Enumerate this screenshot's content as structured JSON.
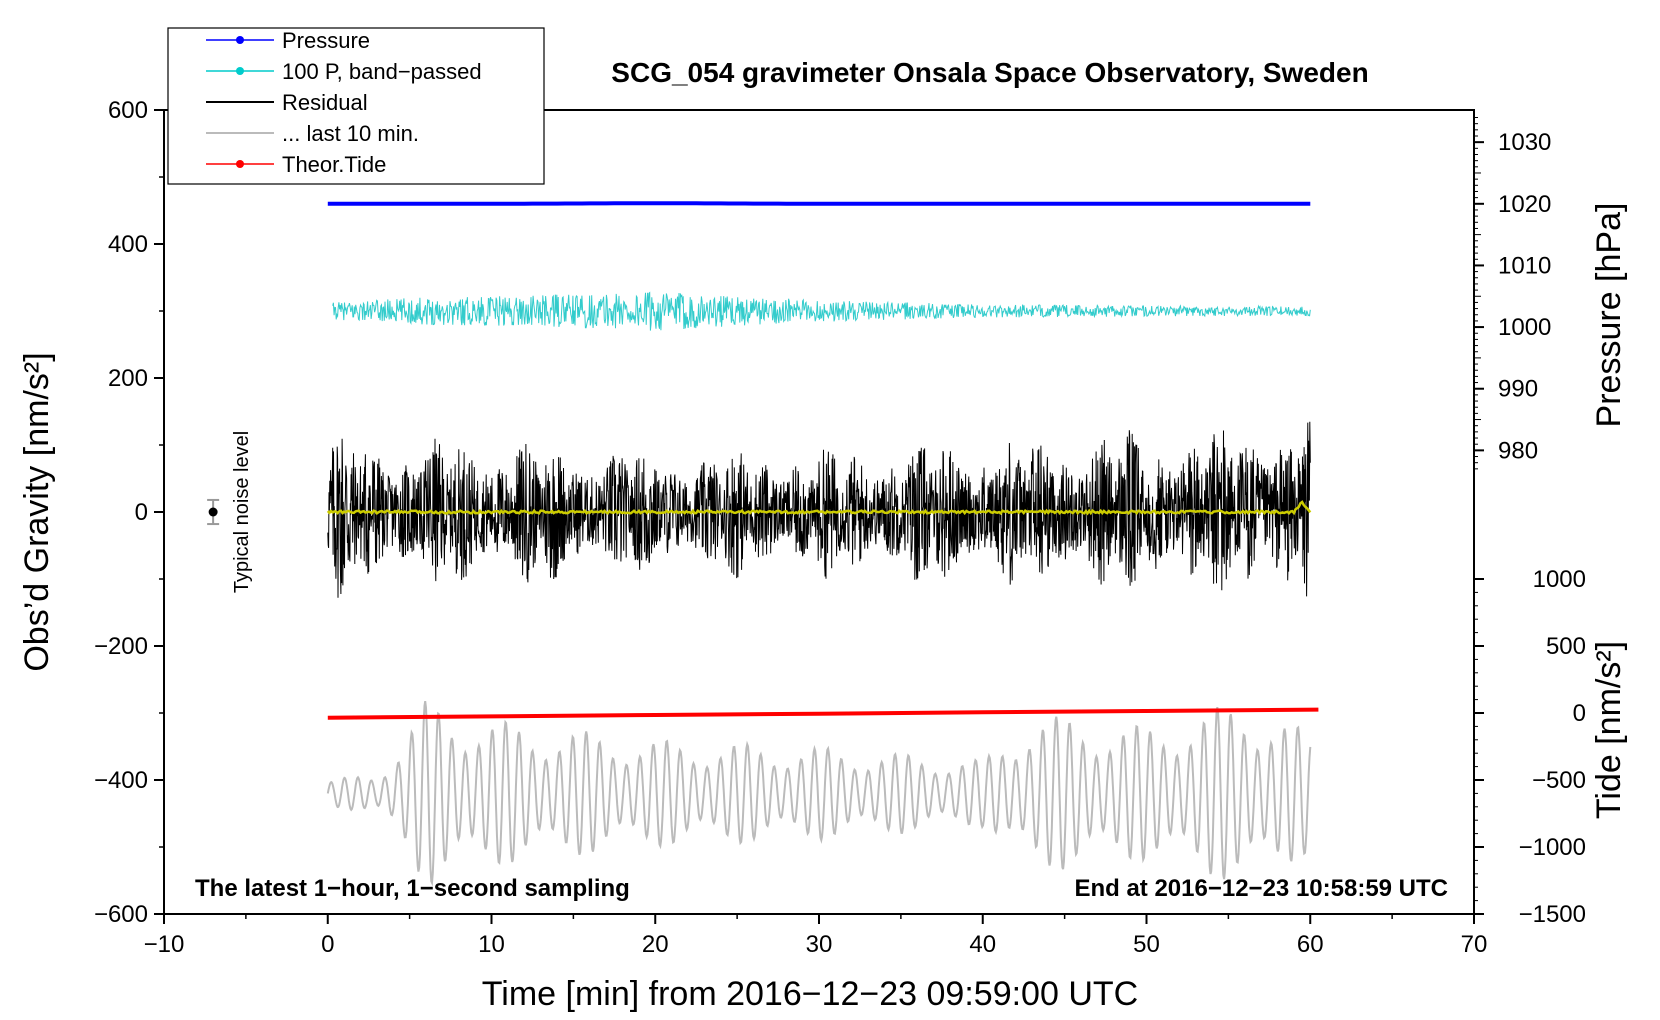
{
  "chart_data": {
    "type": "line",
    "title": "SCG_054 gravimeter Onsala Space Observatory, Sweden",
    "xlabel": "Time [min] from 2016−12−23 09:59:00 UTC",
    "ylabel": "Obs’d Gravity [nm/s²]",
    "ylabel_right_top": "Pressure [hPa]",
    "ylabel_right_bottom": "Tide [nm/s²]",
    "xlim": [
      -10,
      70
    ],
    "ylim": [
      -600,
      600
    ],
    "pressure_lim": [
      975,
      1035
    ],
    "tide_lim": [
      -1500,
      1500
    ],
    "x_ticks": [
      "−10",
      "0",
      "10",
      "20",
      "30",
      "40",
      "50",
      "60",
      "70"
    ],
    "x_tick_values": [
      -10,
      0,
      10,
      20,
      30,
      40,
      50,
      60,
      70
    ],
    "y_ticks": [
      "600",
      "400",
      "200",
      "0",
      "−200",
      "−400",
      "−600"
    ],
    "y_tick_values": [
      600,
      400,
      200,
      0,
      -200,
      -400,
      -600
    ],
    "pressure_ticks": [
      "1030",
      "1020",
      "1010",
      "1000",
      "990",
      "980"
    ],
    "pressure_tick_values": [
      1030,
      1020,
      1010,
      1000,
      990,
      980
    ],
    "tide_ticks": [
      "1000",
      "500",
      "0",
      "−500",
      "−1000",
      "−1500"
    ],
    "tide_tick_values": [
      1000,
      500,
      0,
      -500,
      -1000,
      -1500
    ],
    "legend": [
      {
        "label": "Pressure",
        "color": "#0000ff",
        "marker": true
      },
      {
        "label": "100 P, band−passed",
        "color": "#00cccc",
        "marker": true
      },
      {
        "label": "Residual",
        "color": "#000000",
        "marker": false
      },
      {
        "label": "... last 10 min.",
        "color": "#bbbbbb",
        "marker": false
      },
      {
        "label": "Theor.Tide",
        "color": "#ff0000",
        "marker": true
      }
    ],
    "series": [
      {
        "name": "Pressure",
        "color": "#0000ff",
        "axis": "pressure",
        "x": [
          0,
          10,
          20,
          30,
          40,
          50,
          60
        ],
        "values": [
          1020.0,
          1020.0,
          1020.1,
          1020.0,
          1020.0,
          1020.0,
          1020.0
        ]
      },
      {
        "name": "100 P, band−passed",
        "color": "#33cccc",
        "axis": "gravity",
        "center": 300,
        "amplitude_envelope_x": [
          0,
          5,
          10,
          15,
          20,
          25,
          30,
          40,
          50,
          60
        ],
        "amplitude_envelope": [
          12,
          20,
          22,
          25,
          30,
          22,
          16,
          10,
          8,
          7
        ]
      },
      {
        "name": "Residual",
        "color": "#000000",
        "axis": "gravity",
        "center": 0,
        "amplitude_envelope_x": [
          0,
          5,
          10,
          20,
          30,
          40,
          50,
          60
        ],
        "amplitude_envelope": [
          150,
          110,
          120,
          100,
          100,
          120,
          130,
          150
        ]
      },
      {
        "name": "smoothed residual",
        "color": "#cccc00",
        "axis": "gravity",
        "x": [
          0,
          20,
          40,
          59,
          59.5,
          60
        ],
        "values": [
          0,
          0,
          0,
          0,
          15,
          0
        ]
      },
      {
        "name": "... last 10 min.",
        "color": "#bbbbbb",
        "axis": "gravity",
        "center": -420,
        "amplitude_envelope_x": [
          0,
          3,
          6,
          10,
          20,
          30,
          40,
          43,
          50,
          56,
          60
        ],
        "amplitude_envelope": [
          20,
          30,
          140,
          110,
          80,
          70,
          50,
          120,
          100,
          140,
          90
        ]
      },
      {
        "name": "Theor.Tide",
        "color": "#ff0000",
        "axis": "tide",
        "x": [
          0,
          10,
          20,
          30,
          40,
          50,
          60.5
        ],
        "values": [
          -35,
          -25,
          -15,
          -5,
          5,
          15,
          25
        ]
      }
    ],
    "annotations": {
      "left_note": "The latest 1−hour, 1−second sampling",
      "right_note": "End at 2016−12−23 10:58:59 UTC",
      "noise_label": "Typical noise level",
      "noise_point": {
        "x": -7,
        "y": 0,
        "error": 18
      }
    }
  }
}
